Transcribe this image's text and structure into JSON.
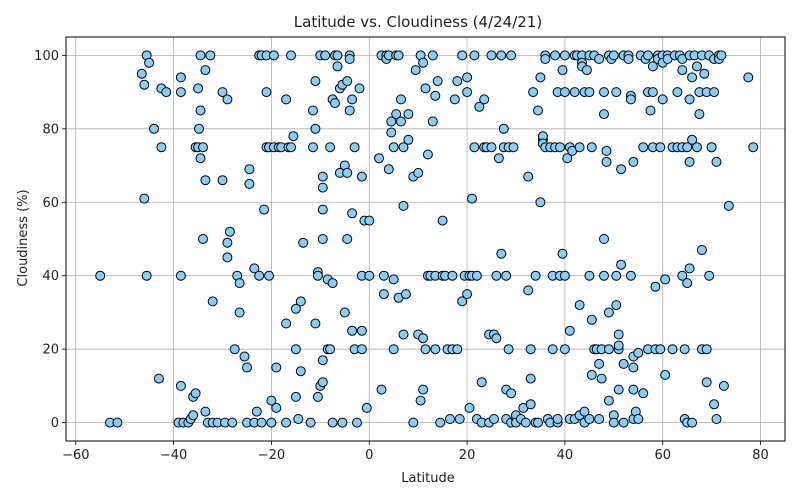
{
  "chart_data": {
    "type": "scatter",
    "title": "Latitude vs. Cloudiness (4/24/21)",
    "xlabel": "Latitude",
    "ylabel": "Cloudiness (%)",
    "xlim": [
      -62,
      85
    ],
    "ylim": [
      -5,
      105
    ],
    "xticks": [
      -60,
      -40,
      -20,
      0,
      20,
      40,
      60,
      80
    ],
    "yticks": [
      0,
      20,
      40,
      60,
      80,
      100
    ],
    "grid": true,
    "marker_color": "#87cefa",
    "marker_edge": "#000000",
    "points": [
      [
        -55,
        40
      ],
      [
        -53,
        0
      ],
      [
        -51.5,
        0
      ],
      [
        -46.5,
        95
      ],
      [
        -46,
        92
      ],
      [
        -46,
        61
      ],
      [
        -45.5,
        100
      ],
      [
        -45.5,
        40
      ],
      [
        -45,
        98
      ],
      [
        -44,
        80
      ],
      [
        -43,
        12
      ],
      [
        -42.5,
        91
      ],
      [
        -42.5,
        75
      ],
      [
        -41.5,
        90
      ],
      [
        -39,
        0
      ],
      [
        -38.5,
        94
      ],
      [
        -38.5,
        90
      ],
      [
        -38.5,
        40
      ],
      [
        -38.5,
        10
      ],
      [
        -38,
        0
      ],
      [
        -37,
        0
      ],
      [
        -36.5,
        1
      ],
      [
        -36,
        2
      ],
      [
        -36,
        7
      ],
      [
        -35.5,
        8
      ],
      [
        -35.5,
        75
      ],
      [
        -35,
        75
      ],
      [
        -35,
        91
      ],
      [
        -34.8,
        80
      ],
      [
        -34.5,
        72
      ],
      [
        -34.5,
        85
      ],
      [
        -34.5,
        100
      ],
      [
        -34,
        50
      ],
      [
        -34,
        75
      ],
      [
        -33.5,
        66
      ],
      [
        -33.5,
        96
      ],
      [
        -33.5,
        3
      ],
      [
        -33,
        0
      ],
      [
        -32.5,
        100
      ],
      [
        -32,
        33
      ],
      [
        -32,
        0
      ],
      [
        -31,
        0
      ],
      [
        -30,
        66
      ],
      [
        -30,
        90
      ],
      [
        -29.5,
        0
      ],
      [
        -29,
        88
      ],
      [
        -29,
        49
      ],
      [
        -29,
        45
      ],
      [
        -28.5,
        52
      ],
      [
        -28,
        0
      ],
      [
        -27.5,
        20
      ],
      [
        -27,
        40
      ],
      [
        -26.5,
        38
      ],
      [
        -26.5,
        30
      ],
      [
        -25.5,
        18
      ],
      [
        -25,
        15
      ],
      [
        -25,
        0
      ],
      [
        -24.5,
        69
      ],
      [
        -24.5,
        65
      ],
      [
        -23.5,
        0
      ],
      [
        -23.5,
        42
      ],
      [
        -23,
        3
      ],
      [
        -22.5,
        40
      ],
      [
        -22.5,
        100
      ],
      [
        -22,
        100
      ],
      [
        -22,
        0
      ],
      [
        -21.5,
        58
      ],
      [
        -21,
        100
      ],
      [
        -21,
        90
      ],
      [
        -21,
        75
      ],
      [
        -20.5,
        40
      ],
      [
        -20.5,
        75
      ],
      [
        -20,
        0
      ],
      [
        -20,
        6
      ],
      [
        -19.5,
        75
      ],
      [
        -19.5,
        100
      ],
      [
        -19,
        15
      ],
      [
        -19,
        4
      ],
      [
        -18.5,
        75
      ],
      [
        -18,
        75
      ],
      [
        -17,
        88
      ],
      [
        -17,
        27
      ],
      [
        -17,
        0
      ],
      [
        -16.5,
        75
      ],
      [
        -16,
        100
      ],
      [
        -16,
        75
      ],
      [
        -15.5,
        78
      ],
      [
        -15,
        20
      ],
      [
        -15,
        31
      ],
      [
        -15,
        7
      ],
      [
        -14.5,
        1
      ],
      [
        -14,
        33
      ],
      [
        -14,
        14
      ],
      [
        -13.5,
        49
      ],
      [
        -12,
        0
      ],
      [
        -11.5,
        75
      ],
      [
        -11.5,
        85
      ],
      [
        -11,
        93
      ],
      [
        -11,
        80
      ],
      [
        -11,
        27
      ],
      [
        -10.5,
        41
      ],
      [
        -10.5,
        40
      ],
      [
        -10.5,
        7
      ],
      [
        -10,
        100
      ],
      [
        -10,
        10
      ],
      [
        -9.5,
        17
      ],
      [
        -9.5,
        11
      ],
      [
        -9.5,
        50
      ],
      [
        -9.5,
        58
      ],
      [
        -9.5,
        64
      ],
      [
        -9.5,
        67
      ],
      [
        -9,
        100
      ],
      [
        -8.5,
        20
      ],
      [
        -8.5,
        39
      ],
      [
        -8,
        20
      ],
      [
        -8,
        75
      ],
      [
        -7.5,
        88
      ],
      [
        -7.5,
        38
      ],
      [
        -7.5,
        0
      ],
      [
        -7,
        87
      ],
      [
        -7,
        100
      ],
      [
        -6.5,
        97
      ],
      [
        -6.5,
        100
      ],
      [
        -6,
        91
      ],
      [
        -6,
        68
      ],
      [
        -5.5,
        92
      ],
      [
        -5.5,
        0
      ],
      [
        -5,
        70
      ],
      [
        -5,
        30
      ],
      [
        -4.5,
        50
      ],
      [
        -4.5,
        68
      ],
      [
        -4.5,
        93
      ],
      [
        -4,
        100
      ],
      [
        -4,
        99
      ],
      [
        -4,
        85
      ],
      [
        -3.5,
        25
      ],
      [
        -3.5,
        57
      ],
      [
        -3.5,
        88
      ],
      [
        -3,
        20
      ],
      [
        -3,
        75
      ],
      [
        -2.5,
        0
      ],
      [
        -2,
        91
      ],
      [
        -1.5,
        67
      ],
      [
        -1.5,
        40
      ],
      [
        -1.5,
        25
      ],
      [
        -1.5,
        20
      ],
      [
        -1,
        55
      ],
      [
        -0.5,
        4
      ],
      [
        0,
        40
      ],
      [
        0,
        55
      ],
      [
        2,
        72
      ],
      [
        2.5,
        9
      ],
      [
        2.5,
        100
      ],
      [
        3,
        35
      ],
      [
        3,
        40
      ],
      [
        3.5,
        100
      ],
      [
        3.5,
        99
      ],
      [
        4,
        69
      ],
      [
        4,
        100
      ],
      [
        4.5,
        82
      ],
      [
        4.5,
        79
      ],
      [
        5,
        75
      ],
      [
        5,
        20
      ],
      [
        5,
        39
      ],
      [
        5.5,
        84
      ],
      [
        5.5,
        100
      ],
      [
        6,
        34
      ],
      [
        6,
        100
      ],
      [
        6.5,
        82
      ],
      [
        6.5,
        88
      ],
      [
        7,
        59
      ],
      [
        7,
        75
      ],
      [
        7,
        24
      ],
      [
        7.5,
        35
      ],
      [
        8,
        77
      ],
      [
        8,
        84
      ],
      [
        9,
        0
      ],
      [
        9,
        67
      ],
      [
        9.5,
        96
      ],
      [
        10,
        68
      ],
      [
        10,
        24
      ],
      [
        10.5,
        100
      ],
      [
        10.5,
        6
      ],
      [
        11,
        98
      ],
      [
        11,
        9
      ],
      [
        11,
        23
      ],
      [
        11.5,
        91
      ],
      [
        11.5,
        20
      ],
      [
        12,
        73
      ],
      [
        12,
        40
      ],
      [
        12.5,
        40
      ],
      [
        13,
        100
      ],
      [
        13,
        82
      ],
      [
        13.5,
        89
      ],
      [
        13.5,
        40
      ],
      [
        13.5,
        20
      ],
      [
        14,
        93
      ],
      [
        14.5,
        0
      ],
      [
        15,
        55
      ],
      [
        15,
        40
      ],
      [
        15.5,
        40
      ],
      [
        16,
        20
      ],
      [
        16.5,
        1
      ],
      [
        17,
        40
      ],
      [
        17,
        20
      ],
      [
        17.5,
        88
      ],
      [
        18,
        93
      ],
      [
        18,
        20
      ],
      [
        18.5,
        1
      ],
      [
        19,
        33
      ],
      [
        19,
        100
      ],
      [
        19.5,
        40
      ],
      [
        20,
        94
      ],
      [
        20,
        90
      ],
      [
        20,
        35
      ],
      [
        20.5,
        40
      ],
      [
        20.5,
        4
      ],
      [
        21,
        61
      ],
      [
        21,
        40
      ],
      [
        21.5,
        100
      ],
      [
        21.5,
        75
      ],
      [
        22,
        40
      ],
      [
        22,
        1
      ],
      [
        22.5,
        86
      ],
      [
        23,
        11
      ],
      [
        23,
        0
      ],
      [
        23.5,
        88
      ],
      [
        23.5,
        75
      ],
      [
        24,
        75
      ],
      [
        24.5,
        0
      ],
      [
        24.5,
        24
      ],
      [
        25,
        75
      ],
      [
        25,
        100
      ],
      [
        25.5,
        1
      ],
      [
        25.5,
        24
      ],
      [
        26,
        40
      ],
      [
        26,
        23
      ],
      [
        26.5,
        72
      ],
      [
        27,
        46
      ],
      [
        27,
        100
      ],
      [
        27.5,
        80
      ],
      [
        27.5,
        75
      ],
      [
        28,
        1
      ],
      [
        28,
        40
      ],
      [
        28,
        9
      ],
      [
        28.5,
        75
      ],
      [
        28.5,
        20
      ],
      [
        29,
        0
      ],
      [
        29,
        8
      ],
      [
        29,
        100
      ],
      [
        29.5,
        75
      ],
      [
        30,
        1
      ],
      [
        30,
        2
      ],
      [
        30,
        0
      ],
      [
        31,
        1
      ],
      [
        31.5,
        4
      ],
      [
        32,
        0
      ],
      [
        32.5,
        67
      ],
      [
        32.5,
        36
      ],
      [
        33,
        12
      ],
      [
        33,
        5
      ],
      [
        33,
        20
      ],
      [
        33.5,
        90
      ],
      [
        34,
        0
      ],
      [
        34,
        40
      ],
      [
        34.5,
        85
      ],
      [
        34.5,
        0
      ],
      [
        35,
        60
      ],
      [
        35,
        94
      ],
      [
        35.5,
        77
      ],
      [
        35.5,
        78
      ],
      [
        35.5,
        76
      ],
      [
        36,
        100
      ],
      [
        36,
        99
      ],
      [
        36,
        75
      ],
      [
        36.5,
        1
      ],
      [
        37,
        75
      ],
      [
        37,
        0
      ],
      [
        37.5,
        20
      ],
      [
        37.5,
        40
      ],
      [
        38,
        75
      ],
      [
        38,
        100
      ],
      [
        38.5,
        0
      ],
      [
        38.5,
        1
      ],
      [
        38.5,
        90
      ],
      [
        39,
        75
      ],
      [
        39,
        40
      ],
      [
        39.5,
        96
      ],
      [
        39.5,
        46
      ],
      [
        40,
        40
      ],
      [
        40,
        20
      ],
      [
        40,
        90
      ],
      [
        40,
        100
      ],
      [
        40.5,
        72
      ],
      [
        41,
        75
      ],
      [
        41,
        25
      ],
      [
        41,
        1
      ],
      [
        41.5,
        74
      ],
      [
        42,
        1
      ],
      [
        42,
        100
      ],
      [
        42,
        90
      ],
      [
        42.5,
        100
      ],
      [
        43,
        75
      ],
      [
        43,
        32
      ],
      [
        43,
        2
      ],
      [
        43.5,
        100
      ],
      [
        43.5,
        98
      ],
      [
        43.5,
        97
      ],
      [
        44,
        0
      ],
      [
        44,
        90
      ],
      [
        44,
        3
      ],
      [
        44.5,
        96
      ],
      [
        45,
        1
      ],
      [
        45,
        100
      ],
      [
        45,
        90
      ],
      [
        45,
        40
      ],
      [
        45.5,
        28
      ],
      [
        45.5,
        13
      ],
      [
        45.5,
        75
      ],
      [
        46,
        20
      ],
      [
        46,
        100
      ],
      [
        46.5,
        20
      ],
      [
        47,
        1
      ],
      [
        47,
        16
      ],
      [
        47,
        99
      ],
      [
        47.5,
        12
      ],
      [
        47.5,
        20
      ],
      [
        48,
        50
      ],
      [
        48,
        90
      ],
      [
        48,
        84
      ],
      [
        48,
        40
      ],
      [
        48.5,
        74
      ],
      [
        48.5,
        71
      ],
      [
        49,
        30
      ],
      [
        49,
        20
      ],
      [
        49,
        6
      ],
      [
        49,
        100
      ],
      [
        49.5,
        99
      ],
      [
        50,
        2
      ],
      [
        50,
        0
      ],
      [
        50,
        100
      ],
      [
        50.5,
        90
      ],
      [
        50.5,
        40
      ],
      [
        50.5,
        32
      ],
      [
        51,
        24
      ],
      [
        51,
        20
      ],
      [
        51,
        21
      ],
      [
        51,
        9
      ],
      [
        51.5,
        69
      ],
      [
        51.5,
        43
      ],
      [
        52,
        100
      ],
      [
        52,
        16
      ],
      [
        52,
        0
      ],
      [
        53,
        100
      ],
      [
        53,
        99
      ],
      [
        53.5,
        89
      ],
      [
        53.5,
        88
      ],
      [
        53.5,
        40
      ],
      [
        54,
        71
      ],
      [
        54,
        18
      ],
      [
        54,
        15
      ],
      [
        54,
        9
      ],
      [
        54,
        1
      ],
      [
        54.5,
        3
      ],
      [
        55,
        19
      ],
      [
        55,
        1
      ],
      [
        55.5,
        100
      ],
      [
        56,
        8
      ],
      [
        56,
        75
      ],
      [
        56.5,
        99
      ],
      [
        57,
        100
      ],
      [
        57,
        90
      ],
      [
        57,
        20
      ],
      [
        57.5,
        85
      ],
      [
        58,
        97
      ],
      [
        58,
        90
      ],
      [
        58,
        75
      ],
      [
        58.5,
        37
      ],
      [
        58.5,
        20
      ],
      [
        59,
        100
      ],
      [
        59,
        99
      ],
      [
        59.5,
        75
      ],
      [
        59.5,
        20
      ],
      [
        60,
        100
      ],
      [
        60,
        98
      ],
      [
        60,
        88
      ],
      [
        60.5,
        13
      ],
      [
        60.5,
        39
      ],
      [
        61,
        100
      ],
      [
        61,
        99
      ],
      [
        62,
        75
      ],
      [
        62,
        20
      ],
      [
        62.5,
        100
      ],
      [
        63,
        75
      ],
      [
        63,
        90
      ],
      [
        63.5,
        100
      ],
      [
        64,
        99
      ],
      [
        64,
        75
      ],
      [
        64,
        96
      ],
      [
        64,
        40
      ],
      [
        64.5,
        1
      ],
      [
        64.5,
        20
      ],
      [
        65,
        38
      ],
      [
        65,
        75
      ],
      [
        65,
        0
      ],
      [
        65.5,
        42
      ],
      [
        65.5,
        100
      ],
      [
        65.5,
        88
      ],
      [
        65.5,
        71
      ],
      [
        66,
        94
      ],
      [
        66,
        77
      ],
      [
        66,
        0
      ],
      [
        66.5,
        100
      ],
      [
        67,
        75
      ],
      [
        67,
        97
      ],
      [
        67.5,
        84
      ],
      [
        67.5,
        90
      ],
      [
        68,
        100
      ],
      [
        68,
        47
      ],
      [
        68,
        20
      ],
      [
        68.5,
        95
      ],
      [
        69,
        90
      ],
      [
        69,
        11
      ],
      [
        69,
        20
      ],
      [
        69.5,
        100
      ],
      [
        69.5,
        40
      ],
      [
        70,
        75
      ],
      [
        70,
        75
      ],
      [
        70.5,
        99
      ],
      [
        70.5,
        90
      ],
      [
        70.5,
        5
      ],
      [
        71,
        71
      ],
      [
        71,
        1
      ],
      [
        71.5,
        100
      ],
      [
        71.5,
        99
      ],
      [
        72,
        100
      ],
      [
        72.5,
        10
      ],
      [
        73.5,
        59
      ],
      [
        77.5,
        94
      ],
      [
        78.5,
        75
      ]
    ]
  }
}
